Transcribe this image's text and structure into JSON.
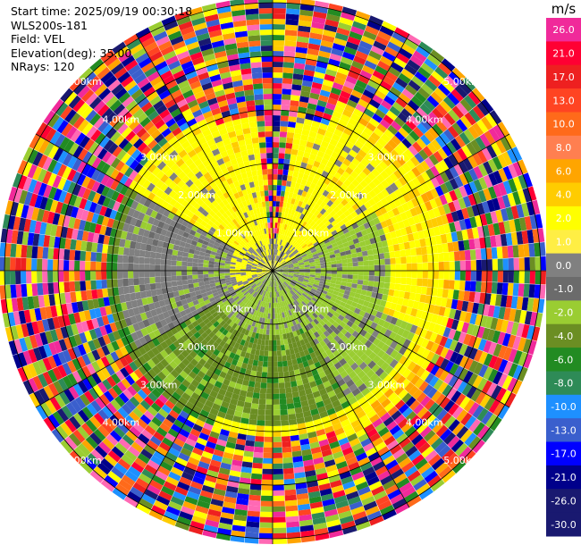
{
  "header": {
    "start_time": "Start time: 2025/09/19 00:30:18",
    "instrument": "WLS200s-181",
    "field": "Field: VEL",
    "elevation": "Elevation(deg): 35.00",
    "nrays": "NRays: 120"
  },
  "chart_data": {
    "type": "heatmap",
    "projection": "polar-ppi",
    "field": "VEL",
    "unit": "m/s",
    "nrays": 120,
    "range_rings_km": [
      1,
      2,
      3,
      4,
      5
    ],
    "ring_labels": [
      "1.00km",
      "2.00km",
      "3.00km",
      "4.00km",
      "5.00km"
    ],
    "max_range_km": 5.1,
    "grid_spokes_deg": [
      0,
      30,
      60,
      90,
      120,
      150,
      180,
      210,
      240,
      270,
      300,
      330
    ],
    "colorbar": {
      "ticks": [
        "26.0",
        "21.0",
        "17.0",
        "13.0",
        "10.0",
        "8.0",
        "6.0",
        "4.0",
        "2.0",
        "1.0",
        "0.0",
        "-1.0",
        "-2.0",
        "-4.0",
        "-6.0",
        "-8.0",
        "-10.0",
        "-13.0",
        "-17.0",
        "-21.0",
        "-26.0",
        "-30.0"
      ],
      "colors": [
        "#f02a9a",
        "#ff0033",
        "#ee2020",
        "#ff4422",
        "#ff6a1a",
        "#ff7f50",
        "#ffa500",
        "#ffcc00",
        "#ffff00",
        "#ffee44",
        "#808080",
        "#6b6b6b",
        "#9acd32",
        "#6b8e23",
        "#228b22",
        "#2e8b57",
        "#1e90ff",
        "#3a5fcd",
        "#0000ff",
        "#00008b",
        "#191970",
        "#191970"
      ]
    },
    "regions": [
      {
        "name": "yellow-inner",
        "value_range": [
          2,
          4
        ],
        "description_color": "#ffff00"
      },
      {
        "name": "grey-near-zero",
        "value_range": [
          -1,
          1
        ],
        "description_color": "#808080"
      },
      {
        "name": "green-negative",
        "value_range": [
          -6,
          -2
        ],
        "description_color": "#9acd32"
      },
      {
        "name": "noise-outer",
        "value_range": [
          -30,
          30
        ]
      }
    ]
  },
  "colors": {
    "grid": "#000000",
    "background": "#ffffff"
  }
}
